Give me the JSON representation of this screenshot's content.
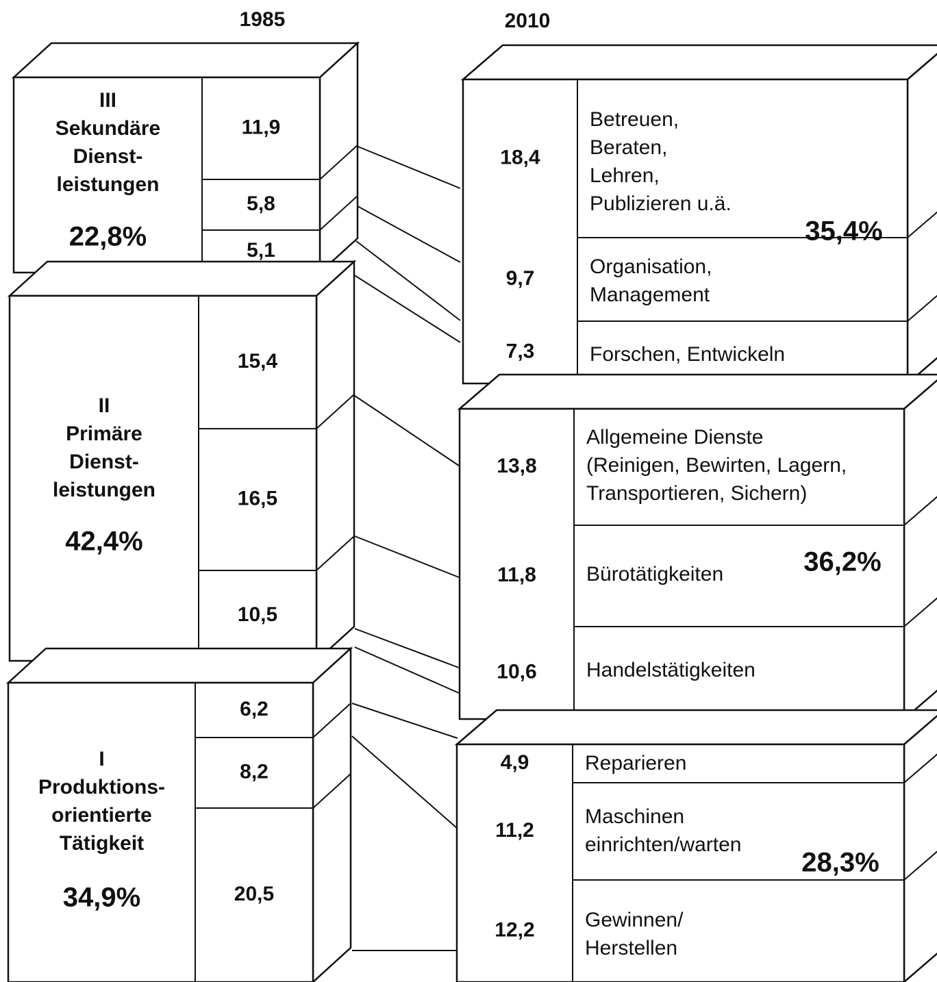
{
  "header": {
    "years": [
      "1985",
      "2010"
    ]
  },
  "left_groups": [
    {
      "label": [
        "III",
        "Sekundäre",
        "Dienst-",
        "leistungen"
      ],
      "total": "22,8%",
      "segments": [
        "11,9",
        "5,8",
        "5,1"
      ]
    },
    {
      "label": [
        "II",
        "Primäre",
        "Dienst-",
        "leistungen"
      ],
      "total": "42,4%",
      "segments": [
        "15,4",
        "16,5",
        "10,5"
      ]
    },
    {
      "label": [
        "I",
        "Produktions-",
        "orientierte",
        "Tätigkeit"
      ],
      "total": "34,9%",
      "segments": [
        "6,2",
        "8,2",
        "20,5"
      ]
    }
  ],
  "right_groups": [
    {
      "total": "35,4%",
      "segments": [
        {
          "value": "18,4",
          "label": [
            "Betreuen,",
            "Beraten,",
            "Lehren,",
            "Publizieren u.ä."
          ]
        },
        {
          "value": "9,7",
          "label": [
            "Organisation,",
            "Management"
          ]
        },
        {
          "value": "7,3",
          "label": [
            "Forschen, Entwickeln"
          ]
        }
      ]
    },
    {
      "total": "36,2%",
      "segments": [
        {
          "value": "13,8",
          "label": [
            "Allgemeine Dienste",
            "(Reinigen, Bewirten, Lagern,",
            "Transportieren, Sichern)"
          ]
        },
        {
          "value": "11,8",
          "label": [
            "Bürotätigkeiten"
          ]
        },
        {
          "value": "10,6",
          "label": [
            "Handelstätigkeiten"
          ]
        }
      ]
    },
    {
      "total": "28,3%",
      "segments": [
        {
          "value": "4,9",
          "label": [
            "Reparieren"
          ]
        },
        {
          "value": "11,2",
          "label": [
            "Maschinen",
            "einrichten/warten"
          ]
        },
        {
          "value": "12,2",
          "label": [
            "Gewinnen/",
            "Herstellen"
          ]
        }
      ]
    }
  ]
}
